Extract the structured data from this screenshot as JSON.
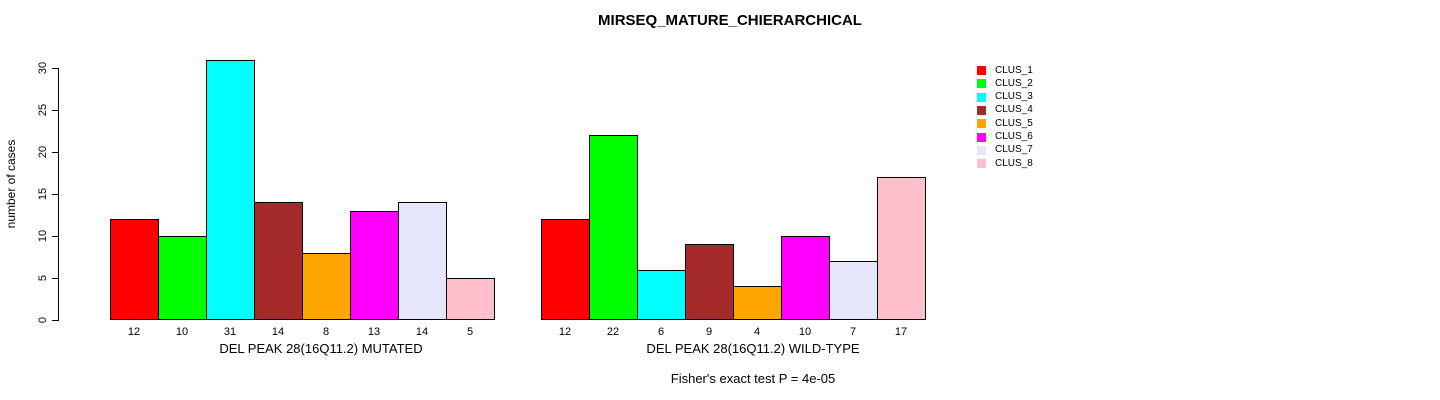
{
  "chart_data": {
    "type": "bar",
    "title": "MIRSEQ_MATURE_CHIERARCHICAL",
    "ylabel": "number of cases",
    "subtitle": "Fisher's exact test P = 4e-05",
    "ylim": [
      0,
      30
    ],
    "yticks": [
      0,
      5,
      10,
      15,
      20,
      25,
      30
    ],
    "grid": "off",
    "legend_position": "right",
    "legend": [
      {
        "label": "CLUS_1",
        "color": "#FF0000"
      },
      {
        "label": "CLUS_2",
        "color": "#00FF00"
      },
      {
        "label": "CLUS_3",
        "color": "#00FFFF"
      },
      {
        "label": "CLUS_4",
        "color": "#A52A2A"
      },
      {
        "label": "CLUS_5",
        "color": "#FFA500"
      },
      {
        "label": "CLUS_6",
        "color": "#FF00FF"
      },
      {
        "label": "CLUS_7",
        "color": "#E6E6FA"
      },
      {
        "label": "CLUS_8",
        "color": "#FFC0CB"
      }
    ],
    "groups": [
      {
        "id": "mutated",
        "label": "DEL PEAK 28(16Q11.2) MUTATED",
        "categories": [
          "CLUS_1",
          "CLUS_2",
          "CLUS_3",
          "CLUS_4",
          "CLUS_5",
          "CLUS_6",
          "CLUS_7",
          "CLUS_8"
        ],
        "values": [
          12,
          10,
          31,
          14,
          8,
          13,
          14,
          5
        ]
      },
      {
        "id": "wildtype",
        "label": "DEL PEAK 28(16Q11.2) WILD-TYPE",
        "categories": [
          "CLUS_1",
          "CLUS_2",
          "CLUS_3",
          "CLUS_4",
          "CLUS_5",
          "CLUS_6",
          "CLUS_7",
          "CLUS_8"
        ],
        "values": [
          12,
          22,
          6,
          9,
          4,
          10,
          7,
          17
        ]
      }
    ],
    "colors": {
      "background": "#FFFFFF",
      "axis": "#000000",
      "text": "#000000"
    }
  }
}
